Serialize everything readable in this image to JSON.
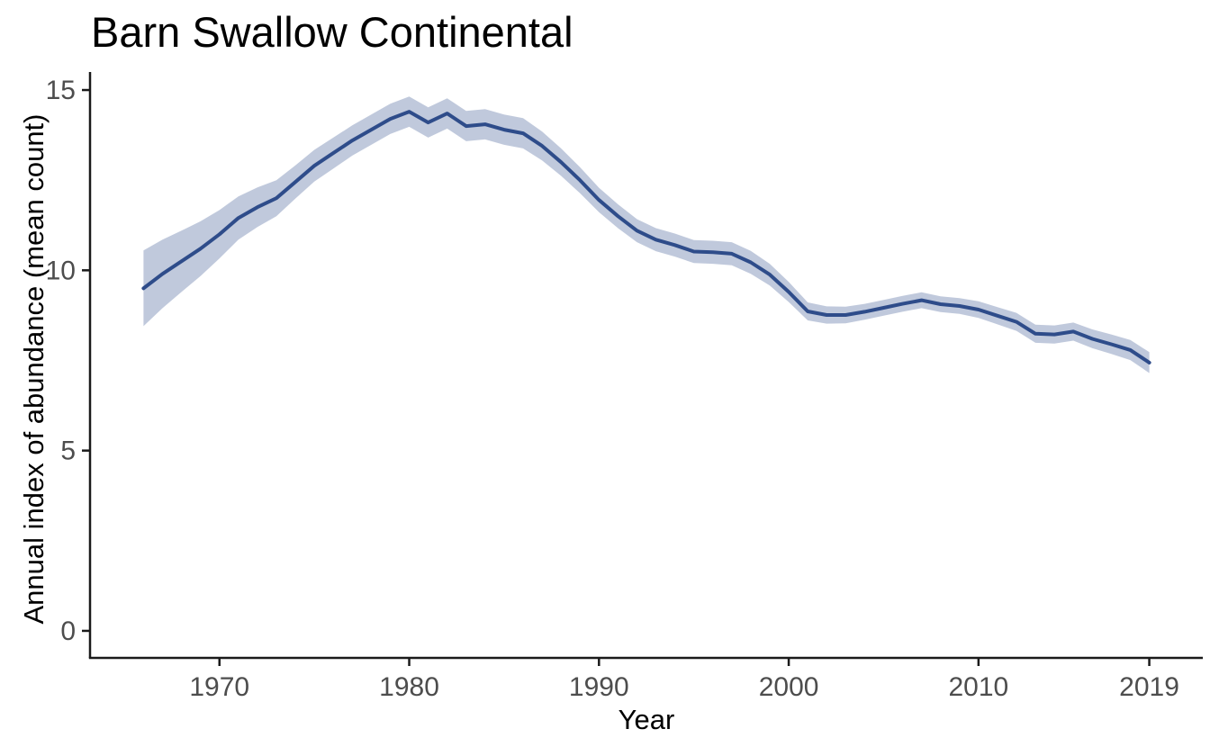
{
  "title": "Barn Swallow Continental",
  "chart_data": {
    "type": "line",
    "title": "Barn Swallow Continental",
    "xlabel": "Year",
    "ylabel": "Annual index of abundance (mean count)",
    "grid": false,
    "legend": "none",
    "line_color": "#2E4C8A",
    "ribbon_color": "#2E4C8A",
    "ribbon_opacity": 0.3,
    "axis_color": "#1A1A1A",
    "tick_label_color": "#4D4D4D",
    "background_color": "#FFFFFF",
    "xlim": [
      1963.18,
      2021.82
    ],
    "ylim": [
      -0.75,
      15.5
    ],
    "xticks": [
      1970,
      1980,
      1990,
      2000,
      2010,
      2019
    ],
    "xtick_labels": [
      "1970",
      "1980",
      "1990",
      "2000",
      "2010",
      "2019"
    ],
    "yticks": [
      0,
      5,
      10,
      15
    ],
    "ytick_labels": [
      "0",
      "5",
      "10",
      "15"
    ],
    "x": [
      1966,
      1967,
      1968,
      1969,
      1970,
      1971,
      1972,
      1973,
      1974,
      1975,
      1976,
      1977,
      1978,
      1979,
      1980,
      1981,
      1982,
      1983,
      1984,
      1985,
      1986,
      1987,
      1988,
      1989,
      1990,
      1991,
      1992,
      1993,
      1994,
      1995,
      1996,
      1997,
      1998,
      1999,
      2000,
      2001,
      2002,
      2003,
      2004,
      2005,
      2006,
      2007,
      2008,
      2009,
      2010,
      2011,
      2012,
      2013,
      2014,
      2015,
      2016,
      2017,
      2018,
      2019
    ],
    "series": [
      {
        "name": "Annual index of abundance (mean count)",
        "values": [
          9.5,
          9.9,
          10.25,
          10.6,
          11.0,
          11.45,
          11.75,
          12.0,
          12.45,
          12.9,
          13.25,
          13.6,
          13.9,
          14.2,
          14.4,
          14.1,
          14.35,
          14.0,
          14.05,
          13.9,
          13.8,
          13.45,
          13.0,
          12.5,
          11.95,
          11.5,
          11.1,
          10.85,
          10.7,
          10.52,
          10.5,
          10.46,
          10.22,
          9.88,
          9.4,
          8.86,
          8.76,
          8.76,
          8.85,
          8.96,
          9.07,
          9.17,
          9.06,
          9.01,
          8.91,
          8.74,
          8.57,
          8.24,
          8.22,
          8.3,
          8.1,
          7.95,
          7.79,
          7.44
        ]
      }
    ],
    "ci_low": [
      8.45,
      8.95,
      9.4,
      9.84,
      10.33,
      10.85,
      11.2,
      11.5,
      11.99,
      12.46,
      12.82,
      13.18,
      13.48,
      13.78,
      13.98,
      13.68,
      13.93,
      13.58,
      13.63,
      13.48,
      13.38,
      13.05,
      12.62,
      12.14,
      11.61,
      11.17,
      10.78,
      10.53,
      10.38,
      10.2,
      10.18,
      10.14,
      9.9,
      9.58,
      9.12,
      8.61,
      8.52,
      8.53,
      8.63,
      8.74,
      8.85,
      8.95,
      8.84,
      8.79,
      8.68,
      8.5,
      8.32,
      7.99,
      7.97,
      8.05,
      7.84,
      7.68,
      7.51,
      7.15
    ],
    "ci_high": [
      10.55,
      10.85,
      11.1,
      11.36,
      11.67,
      12.05,
      12.3,
      12.5,
      12.91,
      13.34,
      13.68,
      14.02,
      14.32,
      14.62,
      14.82,
      14.52,
      14.77,
      14.42,
      14.47,
      14.32,
      14.22,
      13.85,
      13.38,
      12.86,
      12.29,
      11.83,
      11.42,
      11.17,
      11.02,
      10.84,
      10.82,
      10.78,
      10.54,
      10.18,
      9.68,
      9.11,
      9.0,
      8.99,
      9.07,
      9.18,
      9.29,
      9.39,
      9.28,
      9.23,
      9.14,
      8.98,
      8.82,
      8.49,
      8.47,
      8.55,
      8.36,
      8.22,
      8.07,
      7.73
    ]
  }
}
